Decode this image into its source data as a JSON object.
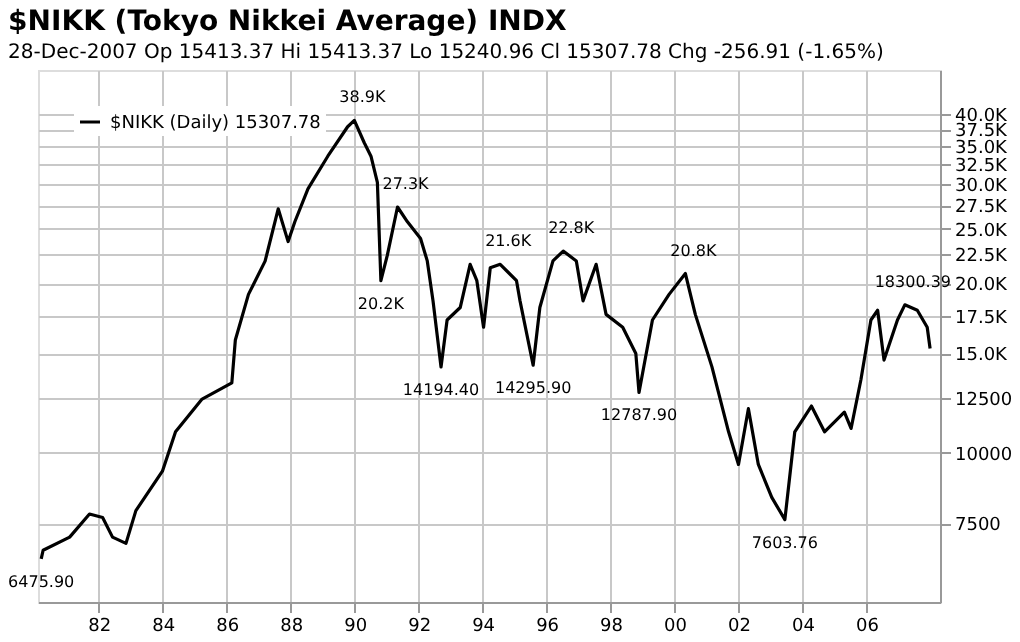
{
  "chart_data": {
    "type": "line",
    "title": "$NIKK (Tokyo Nikkei Average) INDX",
    "subtitle": "28-Dec-2007 Op 15413.37 Hi 15413.37 Lo 15240.96 Cl 15307.78 Chg -256.91 (-1.65%)",
    "series": [
      {
        "name": "$NIKK (Daily) 15307.78",
        "color": "#000000",
        "x": [
          1980.2,
          1980.26,
          1981.09,
          1981.71,
          1982.12,
          1982.43,
          1982.85,
          1983.16,
          1983.99,
          1984.4,
          1985.23,
          1986.16,
          1986.27,
          1986.68,
          1987.2,
          1987.61,
          1987.92,
          1988.13,
          1988.54,
          1989.16,
          1989.78,
          1989.99,
          1990.3,
          1990.51,
          1990.71,
          1990.82,
          1991.02,
          1991.34,
          1991.65,
          1992.06,
          1992.27,
          1992.45,
          1992.7,
          1992.89,
          1993.3,
          1993.61,
          1993.82,
          1994.03,
          1994.24,
          1994.55,
          1995.06,
          1995.17,
          1995.58,
          1995.79,
          1996.2,
          1996.52,
          1996.93,
          1997.14,
          1997.55,
          1997.86,
          1998.38,
          1998.79,
          1998.89,
          1999.31,
          1999.83,
          2000.34,
          2000.65,
          2001.17,
          2001.69,
          2002.0,
          2002.31,
          2002.62,
          2003.04,
          2003.45,
          2003.76,
          2004.28,
          2004.69,
          2005.31,
          2005.52,
          2005.83,
          2006.14,
          2006.35,
          2006.55,
          2006.97,
          2007.2,
          2007.59,
          2007.9,
          2007.99
        ],
        "values": [
          6475.9,
          6710,
          7080,
          7780,
          7670,
          7080,
          6900,
          7890,
          9270,
          10890,
          12450,
          13300,
          15850,
          19100,
          21880,
          27100,
          23700,
          25700,
          29400,
          33600,
          37900,
          38900,
          35500,
          33600,
          30200,
          20200,
          22400,
          27300,
          25700,
          24000,
          21900,
          18600,
          14194.4,
          17200,
          18100,
          21600,
          20200,
          16700,
          21300,
          21600,
          20200,
          18600,
          14295.9,
          18100,
          21900,
          22800,
          21900,
          18600,
          21600,
          17600,
          16700,
          15000,
          12787.9,
          17200,
          19100,
          20800,
          17600,
          14200,
          10890,
          9530,
          11970,
          9530,
          8330,
          7603.76,
          10890,
          12100,
          10890,
          11800,
          11040,
          13500,
          17200,
          17900,
          14600,
          17200,
          18300.39,
          17900,
          16700,
          15307.78
        ]
      }
    ],
    "annotations": [
      {
        "text": "6475.90",
        "x": 1980.2,
        "y": 6475.9
      },
      {
        "text": "38.9K",
        "x": 1989.99,
        "y": 38900
      },
      {
        "text": "27.3K",
        "x": 1991.34,
        "y": 27300
      },
      {
        "text": "20.2K",
        "x": 1990.82,
        "y": 20200
      },
      {
        "text": "14194.40",
        "x": 1992.7,
        "y": 14194.4
      },
      {
        "text": "21.6K",
        "x": 1994.55,
        "y": 21600
      },
      {
        "text": "14295.90",
        "x": 1995.58,
        "y": 14295.9
      },
      {
        "text": "22.8K",
        "x": 1996.52,
        "y": 22800
      },
      {
        "text": "12787.90",
        "x": 1998.89,
        "y": 12787.9
      },
      {
        "text": "20.8K",
        "x": 2000.34,
        "y": 20800
      },
      {
        "text": "7603.76",
        "x": 2003.45,
        "y": 7603.76
      },
      {
        "text": "18300.39",
        "x": 2007.2,
        "y": 18300.39
      }
    ],
    "xlim": [
      1980.1,
      2008.3
    ],
    "xticks": [
      {
        "value": 1982,
        "label": "82"
      },
      {
        "value": 1984,
        "label": "84"
      },
      {
        "value": 1986,
        "label": "86"
      },
      {
        "value": 1988,
        "label": "88"
      },
      {
        "value": 1990,
        "label": "90"
      },
      {
        "value": 1992,
        "label": "92"
      },
      {
        "value": 1994,
        "label": "94"
      },
      {
        "value": 1996,
        "label": "96"
      },
      {
        "value": 1998,
        "label": "98"
      },
      {
        "value": 2000,
        "label": "00"
      },
      {
        "value": 2002,
        "label": "02"
      },
      {
        "value": 2004,
        "label": "04"
      },
      {
        "value": 2006,
        "label": "06"
      }
    ],
    "ylim": [
      5430,
      47800
    ],
    "yticks": [
      7500,
      10000,
      12500,
      {
        "value": 15000,
        "label": "15.0K"
      },
      {
        "value": 17500,
        "label": "17.5K"
      },
      {
        "value": 20000,
        "label": "20.0K"
      },
      {
        "value": 22500,
        "label": "22.5K"
      },
      {
        "value": 25000,
        "label": "25.0K"
      },
      {
        "value": 27500,
        "label": "27.5K"
      },
      {
        "value": 30000,
        "label": "30.0K"
      },
      {
        "value": 32500,
        "label": "32.5K"
      },
      {
        "value": 35000,
        "label": "35.0K"
      },
      {
        "value": 37500,
        "label": "37.5K"
      },
      {
        "value": 40000,
        "label": "40.0K"
      }
    ],
    "log": true,
    "grid": true,
    "legend": "top left",
    "marker": "none",
    "line_style": "solid"
  }
}
